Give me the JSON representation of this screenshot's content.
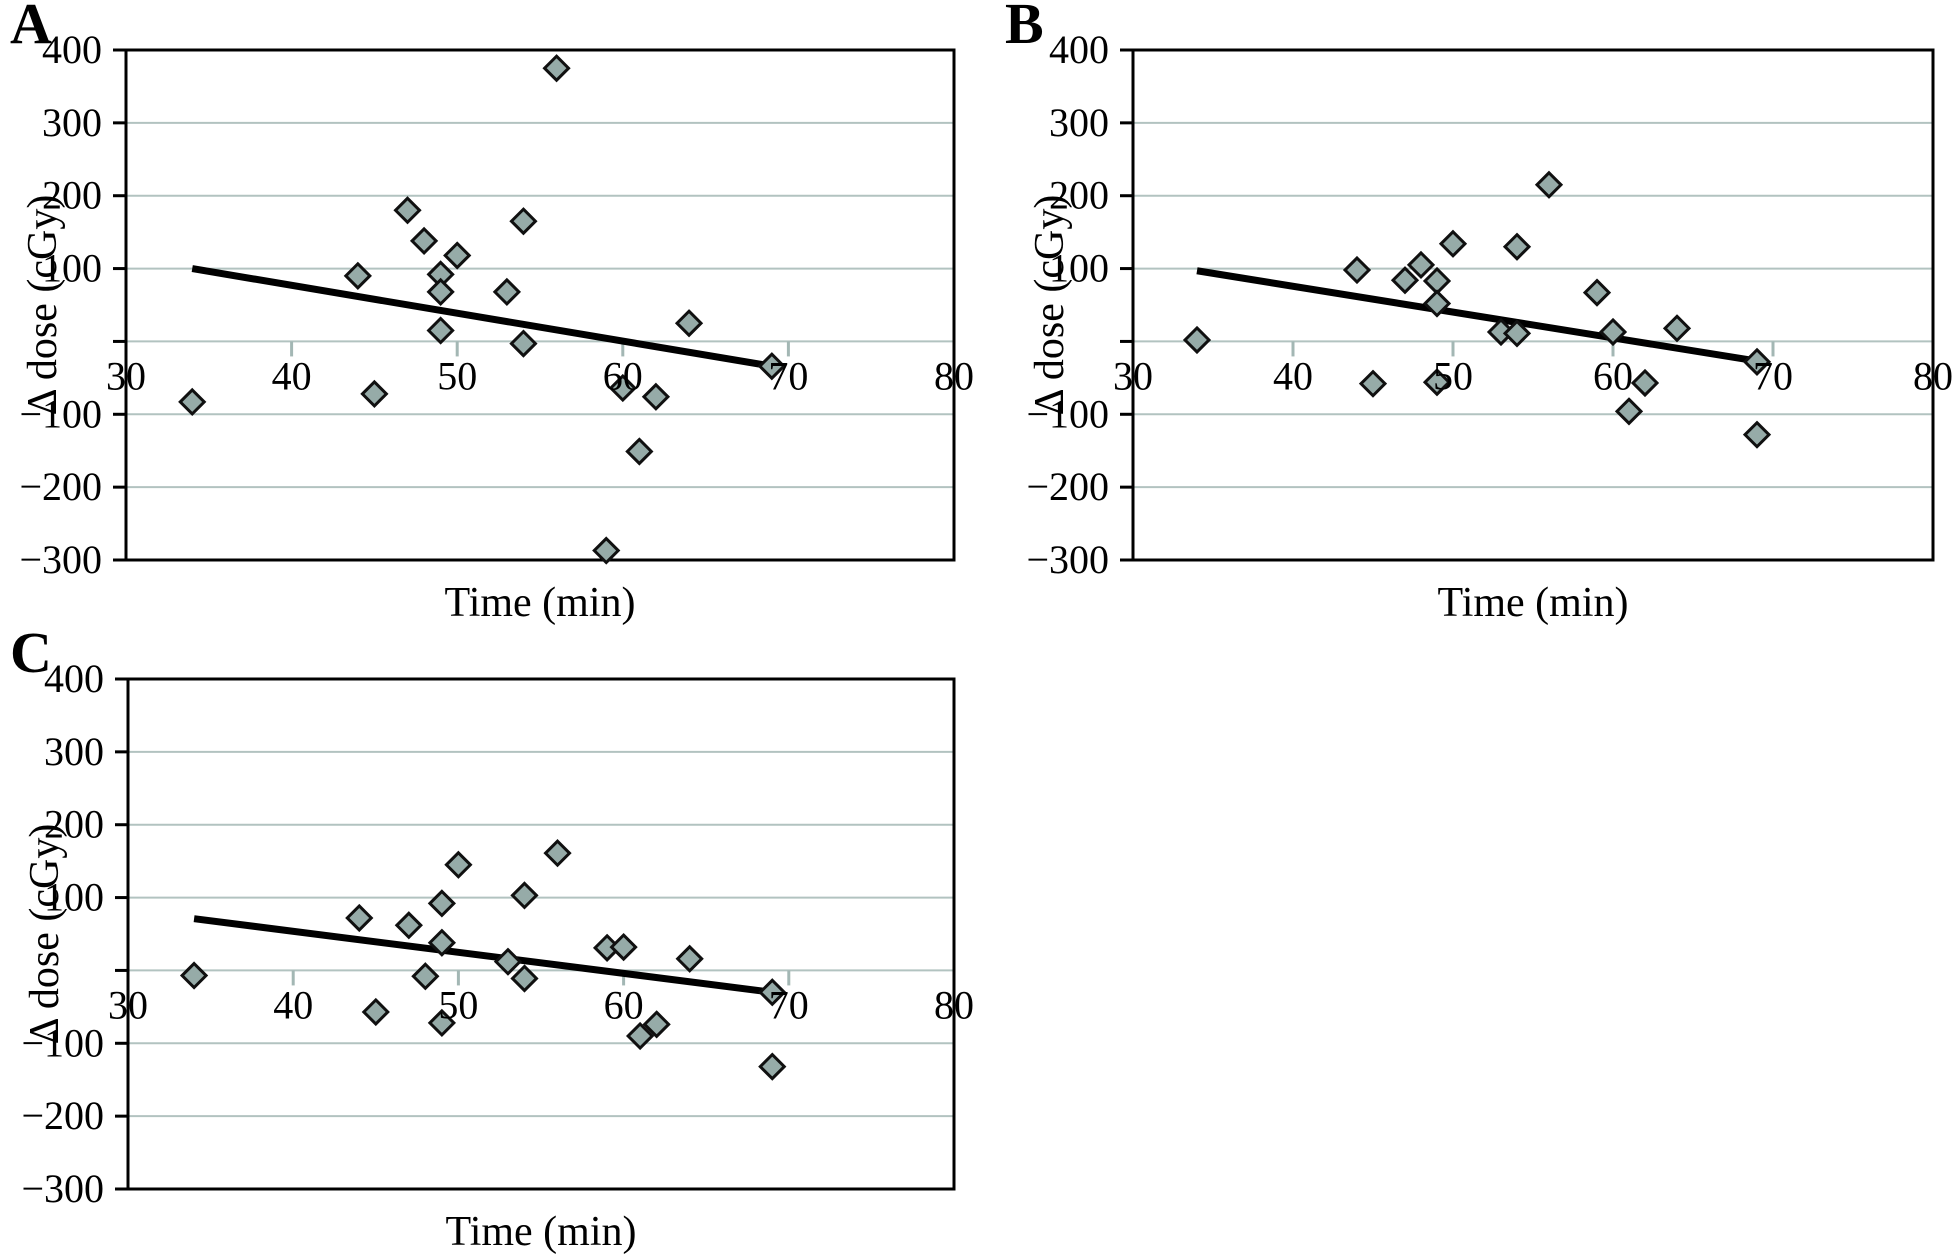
{
  "figure": {
    "background_color": "#ffffff",
    "xlabel": "Time (min)",
    "ylabel": "Δ dose (cGy)"
  },
  "colors": {
    "marker_fill": "#96aba8",
    "marker_stroke": "#101010",
    "gridline": "#b2c3c0",
    "x_tick": "#a3b7b4",
    "axis": "#000000",
    "trend_line": "#000000",
    "text": "#000000"
  },
  "chart_data": [
    {
      "type": "scatter",
      "panel_label": "A",
      "title": "",
      "xlabel": "Time (min)",
      "ylabel": "Δ dose (cGy)",
      "xlim": [
        30,
        80
      ],
      "ylim": [
        -300,
        400
      ],
      "xticks": [
        30,
        40,
        50,
        60,
        70,
        80
      ],
      "yticks_labeled": [
        400,
        300,
        200,
        100,
        -100,
        -200,
        -300
      ],
      "gridlines_y": [
        300,
        200,
        100,
        0,
        -100,
        -200
      ],
      "grid": "horizontal-on",
      "legend": "none",
      "marker": "diamond",
      "points": [
        [
          34,
          -83
        ],
        [
          44,
          90
        ],
        [
          45,
          -72
        ],
        [
          47,
          180
        ],
        [
          48,
          138
        ],
        [
          49,
          92
        ],
        [
          49,
          68
        ],
        [
          49,
          15
        ],
        [
          50,
          118
        ],
        [
          53,
          68
        ],
        [
          54,
          165
        ],
        [
          54,
          -3
        ],
        [
          56,
          375
        ],
        [
          59,
          -287
        ],
        [
          60,
          -64
        ],
        [
          61,
          -151
        ],
        [
          62,
          -76
        ],
        [
          64,
          25
        ],
        [
          69,
          -34
        ]
      ],
      "trend": {
        "x1": 34,
        "y1": 100,
        "x2": 69,
        "y2": -34
      }
    },
    {
      "type": "scatter",
      "panel_label": "B",
      "title": "",
      "xlabel": "Time (min)",
      "ylabel": "Δ dose (cGy)",
      "xlim": [
        30,
        80
      ],
      "ylim": [
        -300,
        400
      ],
      "xticks": [
        30,
        40,
        50,
        60,
        70,
        80
      ],
      "yticks_labeled": [
        400,
        300,
        200,
        100,
        -100,
        -200,
        -300
      ],
      "gridlines_y": [
        300,
        200,
        100,
        0,
        -100,
        -200
      ],
      "grid": "horizontal-on",
      "legend": "none",
      "marker": "diamond",
      "points": [
        [
          34,
          2
        ],
        [
          44,
          98
        ],
        [
          45,
          -58
        ],
        [
          47,
          84
        ],
        [
          48,
          105
        ],
        [
          49,
          83
        ],
        [
          49,
          52
        ],
        [
          49,
          -56
        ],
        [
          50,
          134
        ],
        [
          53,
          13
        ],
        [
          54,
          130
        ],
        [
          54,
          11
        ],
        [
          56,
          215
        ],
        [
          59,
          67
        ],
        [
          60,
          13
        ],
        [
          61,
          -96
        ],
        [
          62,
          -57
        ],
        [
          64,
          18
        ],
        [
          69,
          -28
        ],
        [
          69,
          -128
        ]
      ],
      "trend": {
        "x1": 34,
        "y1": 97,
        "x2": 69,
        "y2": -27
      }
    },
    {
      "type": "scatter",
      "panel_label": "C",
      "title": "",
      "xlabel": "Time (min)",
      "ylabel": "Δ dose (cGy)",
      "xlim": [
        30,
        80
      ],
      "ylim": [
        -300,
        400
      ],
      "xticks": [
        30,
        40,
        50,
        60,
        70,
        80
      ],
      "yticks_labeled": [
        400,
        300,
        200,
        100,
        -100,
        -200,
        -300
      ],
      "gridlines_y": [
        300,
        200,
        100,
        0,
        -100,
        -200
      ],
      "grid": "horizontal-on",
      "legend": "none",
      "marker": "diamond",
      "points": [
        [
          34,
          -7
        ],
        [
          44,
          72
        ],
        [
          45,
          -57
        ],
        [
          47,
          62
        ],
        [
          48,
          -8
        ],
        [
          49,
          92
        ],
        [
          49,
          38
        ],
        [
          49,
          -72
        ],
        [
          50,
          145
        ],
        [
          53,
          12
        ],
        [
          54,
          103
        ],
        [
          54,
          -11
        ],
        [
          56,
          161
        ],
        [
          59,
          31
        ],
        [
          60,
          32
        ],
        [
          61,
          -90
        ],
        [
          62,
          -74
        ],
        [
          64,
          16
        ],
        [
          69,
          -30
        ],
        [
          69,
          -132
        ]
      ],
      "trend": {
        "x1": 34,
        "y1": 71,
        "x2": 69,
        "y2": -30
      }
    }
  ]
}
